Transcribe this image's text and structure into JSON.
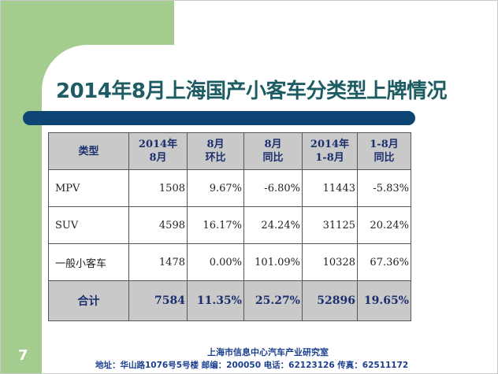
{
  "slide": {
    "title": "2014年8月上海国产小客车分类型上牌情况",
    "page_number": "7"
  },
  "table": {
    "headers": [
      [
        "类型"
      ],
      [
        "2014年",
        "8月"
      ],
      [
        "8月",
        "环比"
      ],
      [
        "8月",
        "同比"
      ],
      [
        "2014年",
        "1-8月"
      ],
      [
        "1-8月",
        "同比"
      ]
    ],
    "rows": [
      [
        "MPV",
        "1508",
        "9.67%",
        "-6.80%",
        "11443",
        "-5.83%"
      ],
      [
        "SUV",
        "4598",
        "16.17%",
        "24.24%",
        "31125",
        "20.24%"
      ],
      [
        "一般小客车",
        "1478",
        "0.00%",
        "101.09%",
        "10328",
        "67.36%"
      ]
    ],
    "total": [
      "合计",
      "7584",
      "11.35%",
      "25.27%",
      "52896",
      "19.65%"
    ]
  },
  "footer": {
    "organization": "上海市信息中心汽车产业研究室",
    "address_line": "地址：华山路1076号5号楼  邮编：200050  电话：62123126  传真：62511172"
  }
}
